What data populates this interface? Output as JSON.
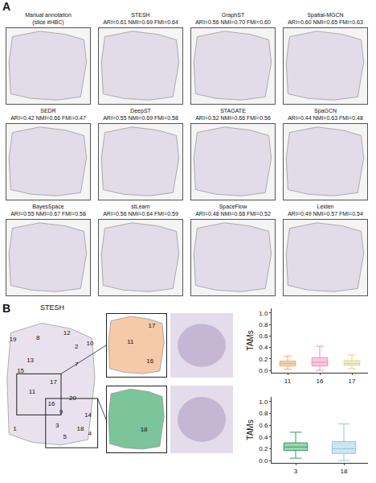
{
  "panel_a": {
    "label": "A",
    "panels": [
      {
        "title": "Manual annotation",
        "subtitle": "(slice #HBC)"
      },
      {
        "title": "STESH",
        "subtitle": "ARI=0.61 NMI=0.69 FMI=0.64"
      },
      {
        "title": "GraphST",
        "subtitle": "ARI=0.56 NMI=0.70 FMI=0.60"
      },
      {
        "title": "Spatial-MGCN",
        "subtitle": "ARI=0.60 NMI=0.65 FMI=0.63"
      },
      {
        "title": "SEDR",
        "subtitle": "ARI=0.42 NMI=0.66 FMI=0.47"
      },
      {
        "title": "DeepST",
        "subtitle": "ARI=0.55 NMI=0.69 FMI=0.58"
      },
      {
        "title": "STAGATE",
        "subtitle": "ARI=0.52 NMI=0.66 FMI=0.56"
      },
      {
        "title": "SpaGCN",
        "subtitle": "ARI=0.44 NMI=0.63 FMI=0.48"
      },
      {
        "title": "BayesSpace",
        "subtitle": "ARI=0.55 NMI=0.67 FMI=0.58"
      },
      {
        "title": "stLearn",
        "subtitle": "ARI=0.56 NMI=0.64 FMI=0.59"
      },
      {
        "title": "SpaceFlow",
        "subtitle": "ARI=0.48 NMI=0.68 FMI=0.52"
      },
      {
        "title": "Leiden",
        "subtitle": "ARI=0.49 NMI=0.57 FMI=0.54"
      }
    ]
  },
  "panel_b": {
    "label": "B",
    "title": "STESH",
    "cluster_labels": [
      "19",
      "8",
      "12",
      "2",
      "10",
      "13",
      "15",
      "7",
      "11",
      "17",
      "16",
      "20",
      "3",
      "9",
      "14",
      "1",
      "5",
      "18",
      "4"
    ],
    "inset_labels": [
      [
        "11",
        "17",
        "16"
      ],
      [
        "18"
      ]
    ]
  },
  "chart_data": [
    {
      "type": "box",
      "categories": [
        "11",
        "16",
        "17"
      ],
      "y_label": "TAMs",
      "ylim": [
        -0.04,
        1.08
      ],
      "yticks": [
        {
          "value": 0,
          "label": "0.0"
        },
        {
          "value": 0.2,
          "label": "0.2"
        },
        {
          "value": 0.4,
          "label": "0.4"
        },
        {
          "value": 0.6,
          "label": "0.6"
        },
        {
          "value": 0.8,
          "label": "0.8"
        },
        {
          "value": 1,
          "label": "1.0"
        }
      ],
      "colors": [
        "#f2a55a",
        "#f08cb8",
        "#d6d88e"
      ],
      "lower": [
        0.02,
        0.0,
        0.03
      ],
      "q1": [
        0.08,
        0.08,
        0.09
      ],
      "median": [
        0.12,
        0.14,
        0.12
      ],
      "q3": [
        0.16,
        0.22,
        0.17
      ],
      "upper": [
        0.25,
        0.42,
        0.27
      ]
    },
    {
      "type": "box",
      "categories": [
        "3",
        "18"
      ],
      "y_label": "TAMs",
      "ylim": [
        -0.04,
        1.08
      ],
      "yticks": [
        {
          "value": 0,
          "label": "0.0"
        },
        {
          "value": 0.2,
          "label": "0.2"
        },
        {
          "value": 0.4,
          "label": "0.4"
        },
        {
          "value": 0.6,
          "label": "0.6"
        },
        {
          "value": 0.8,
          "label": "0.8"
        },
        {
          "value": 1,
          "label": "1.0"
        }
      ],
      "colors": [
        "#2e9e5a",
        "#8ec8e0"
      ],
      "lower": [
        0.04,
        0.0
      ],
      "q1": [
        0.17,
        0.12
      ],
      "median": [
        0.23,
        0.2
      ],
      "q3": [
        0.3,
        0.32
      ],
      "upper": [
        0.48,
        0.62
      ]
    }
  ]
}
